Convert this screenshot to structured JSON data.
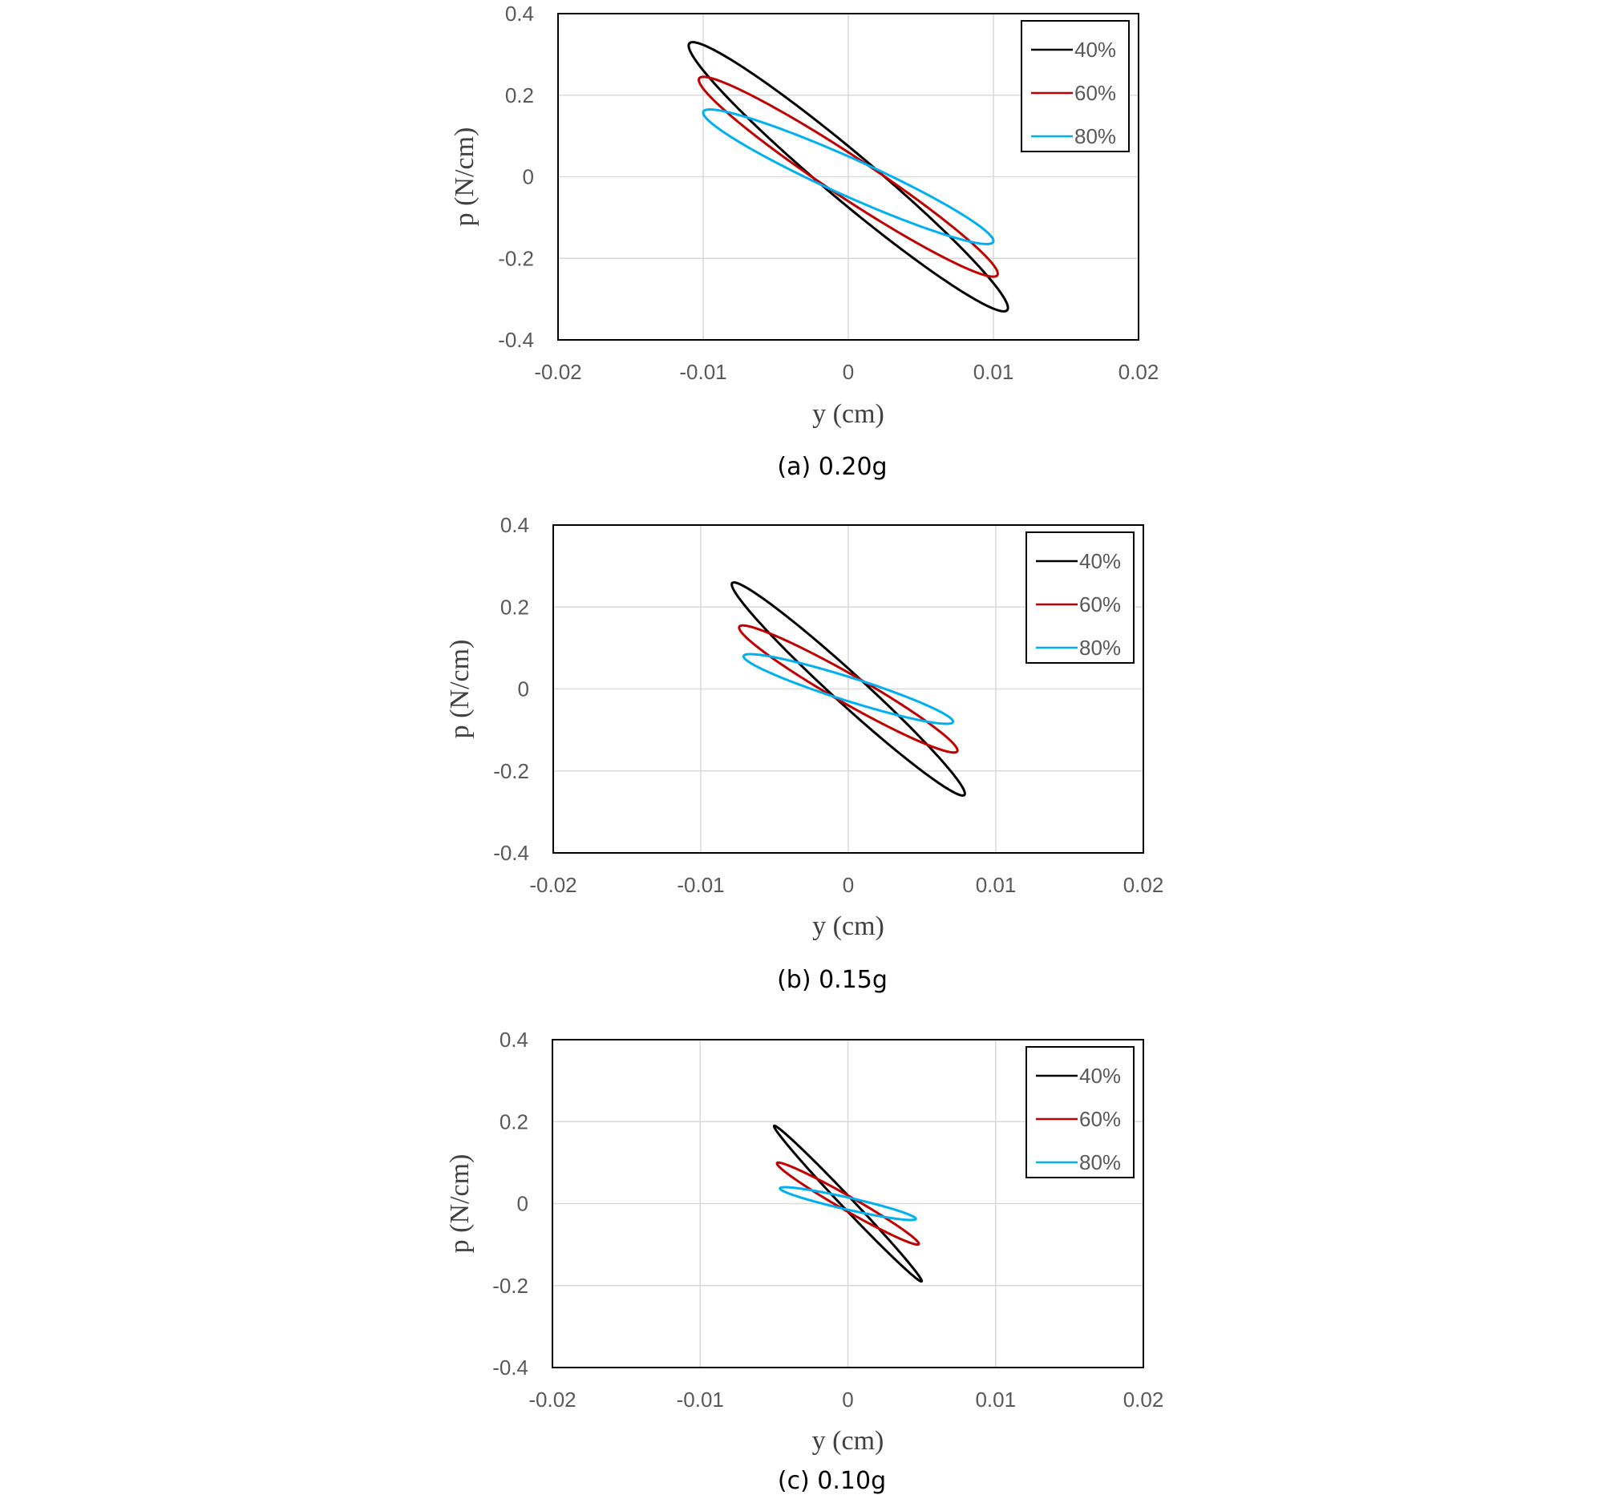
{
  "colors": {
    "series_40": "#000000",
    "series_60": "#c00000",
    "series_80": "#00b0f0",
    "grid": "#d9d9d9",
    "frame": "#000000"
  },
  "chart_data": [
    {
      "type": "line",
      "caption": "(a) 0.20g",
      "xlabel": "y (cm)",
      "ylabel": "p (N/cm)",
      "xlim": [
        -0.02,
        0.02
      ],
      "ylim": [
        -0.4,
        0.4
      ],
      "x_ticks": [
        "-0.02",
        "-0.01",
        "0",
        "0.01",
        "0.02"
      ],
      "y_ticks": [
        "0.4",
        "0.2",
        "0",
        "-0.2",
        "-0.4"
      ],
      "grid": true,
      "legend_position": "top-right",
      "series": [
        {
          "name": "40%",
          "color_key": "series_40",
          "x_amplitude": 0.011,
          "p_amplitude": 0.33,
          "p_at_zero_y": 0.075
        },
        {
          "name": "60%",
          "color_key": "series_60",
          "x_amplitude": 0.0103,
          "p_amplitude": 0.245,
          "p_at_zero_y": 0.06
        },
        {
          "name": "80%",
          "color_key": "series_80",
          "x_amplitude": 0.01,
          "p_amplitude": 0.165,
          "p_at_zero_y": 0.05
        }
      ]
    },
    {
      "type": "line",
      "caption": "(b) 0.15g",
      "xlabel": "y (cm)",
      "ylabel": "p (N/cm)",
      "xlim": [
        -0.02,
        0.02
      ],
      "ylim": [
        -0.4,
        0.4
      ],
      "x_ticks": [
        "-0.02",
        "-0.01",
        "0",
        "0.01",
        "0.02"
      ],
      "y_ticks": [
        "0.4",
        "0.2",
        "0",
        "-0.2",
        "-0.4"
      ],
      "grid": true,
      "legend_position": "top-right",
      "series": [
        {
          "name": "40%",
          "color_key": "series_40",
          "x_amplitude": 0.0079,
          "p_amplitude": 0.26,
          "p_at_zero_y": 0.05
        },
        {
          "name": "60%",
          "color_key": "series_60",
          "x_amplitude": 0.0074,
          "p_amplitude": 0.155,
          "p_at_zero_y": 0.04
        },
        {
          "name": "80%",
          "color_key": "series_80",
          "x_amplitude": 0.0071,
          "p_amplitude": 0.085,
          "p_at_zero_y": 0.03
        }
      ]
    },
    {
      "type": "line",
      "caption": "(c) 0.10g",
      "xlabel": "y (cm)",
      "ylabel": "p (N/cm)",
      "xlim": [
        -0.02,
        0.02
      ],
      "ylim": [
        -0.4,
        0.4
      ],
      "x_ticks": [
        "-0.02",
        "-0.01",
        "0",
        "0.01",
        "0.02"
      ],
      "y_ticks": [
        "0.4",
        "0.2",
        "0",
        "-0.2",
        "-0.4"
      ],
      "grid": true,
      "legend_position": "top-right",
      "series": [
        {
          "name": "40%",
          "color_key": "series_40",
          "x_amplitude": 0.005,
          "p_amplitude": 0.19,
          "p_at_zero_y": 0.02
        },
        {
          "name": "60%",
          "color_key": "series_60",
          "x_amplitude": 0.0048,
          "p_amplitude": 0.1,
          "p_at_zero_y": 0.02
        },
        {
          "name": "80%",
          "color_key": "series_80",
          "x_amplitude": 0.0046,
          "p_amplitude": 0.04,
          "p_at_zero_y": 0.015
        }
      ]
    }
  ]
}
